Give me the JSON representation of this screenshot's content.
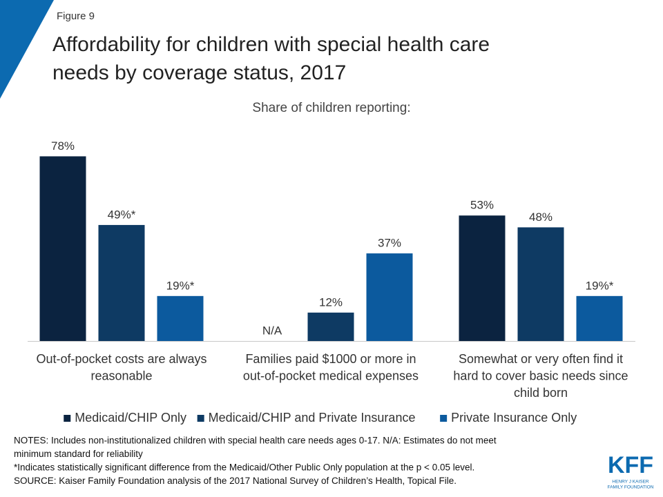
{
  "chart_data": {
    "type": "bar",
    "figure_label": "Figure 9",
    "title": [
      "Affordability for children with special health care",
      "needs by coverage status, 2017"
    ],
    "subtitle": "Share of children reporting:",
    "categories": [
      [
        "Out-of-pocket costs are always",
        "reasonable"
      ],
      [
        "Families paid $1000 or more in",
        "out-of-pocket medical expenses"
      ],
      [
        "Somewhat or very often find it",
        "hard to cover basic needs since",
        "child born"
      ]
    ],
    "series": [
      {
        "name": "Medicaid/CHIP Only",
        "color": "#0b2340",
        "values": [
          78,
          null,
          53
        ],
        "value_labels": [
          "78%",
          "N/A",
          "53%"
        ]
      },
      {
        "name": "Medicaid/CHIP and Private Insurance",
        "color": "#0e3a63",
        "values": [
          49,
          12,
          48
        ],
        "value_labels": [
          "49%*",
          "12%",
          "48%"
        ]
      },
      {
        "name": "Private Insurance Only",
        "color": "#0c5a9e",
        "values": [
          19,
          37,
          19
        ],
        "value_labels": [
          "19%*",
          "37%",
          "19%*"
        ]
      }
    ],
    "legend": "bottom"
  },
  "notes": [
    "NOTES: Includes non-institutionalized  children with special health care needs ages 0-17. N/A: Estimates do not meet",
    "minimum standard for reliability",
    "*Indicates statistically significant difference from the Medicaid/Other Public Only population at the p < 0.05 level.",
    "SOURCE: Kaiser Family Foundation analysis of the 2017 National Survey of Children’s Health, Topical File."
  ],
  "logo": {
    "text": "KFF",
    "lines": [
      "HENRY J KAISER",
      "FAMILY FOUNDATION"
    ]
  }
}
